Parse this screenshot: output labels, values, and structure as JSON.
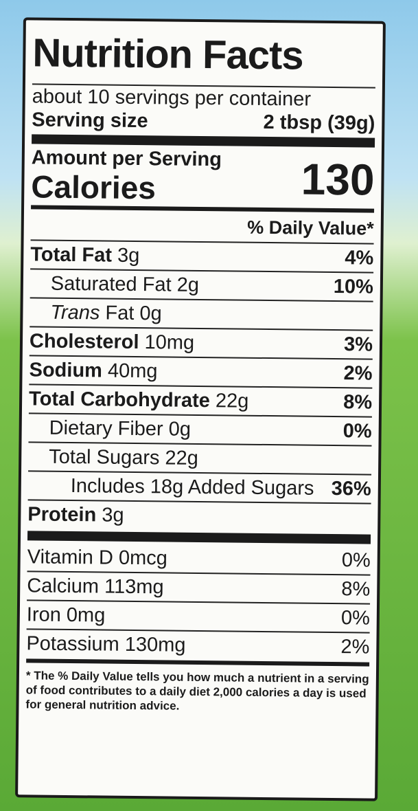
{
  "title": "Nutrition Facts",
  "servings": "about 10 servings per container",
  "serving_size_label": "Serving size",
  "serving_size_value": "2 tbsp (39g)",
  "amount_per_serving": "Amount per Serving",
  "calories_label": "Calories",
  "calories_value": "130",
  "daily_value_header": "% Daily Value*",
  "nutrients": [
    {
      "name": "Total Fat",
      "amount": "3g",
      "dv": "4%"
    },
    {
      "name": "Saturated Fat",
      "amount": "2g",
      "dv": "10%"
    },
    {
      "name": "Trans",
      "amount": "Fat 0g",
      "dv": ""
    },
    {
      "name": "Cholesterol",
      "amount": "10mg",
      "dv": "3%"
    },
    {
      "name": "Sodium",
      "amount": "40mg",
      "dv": "2%"
    },
    {
      "name": "Total Carbohydrate",
      "amount": "22g",
      "dv": "8%"
    },
    {
      "name": "Dietary Fiber",
      "amount": "0g",
      "dv": "0%"
    },
    {
      "name": "Total Sugars",
      "amount": "22g",
      "dv": ""
    },
    {
      "name": "Includes 18g Added Sugars",
      "amount": "",
      "dv": "36%"
    },
    {
      "name": "Protein",
      "amount": "3g",
      "dv": ""
    }
  ],
  "vitamins": [
    {
      "name": "Vitamin D 0mcg",
      "dv": "0%"
    },
    {
      "name": "Calcium 113mg",
      "dv": "8%"
    },
    {
      "name": "Iron 0mg",
      "dv": "0%"
    },
    {
      "name": "Potassium 130mg",
      "dv": "2%"
    }
  ],
  "footnote": "* The % Daily Value tells you how much a nutrient in a serving of food contributes to a daily diet 2,000 calories a day is used for general nutrition advice."
}
